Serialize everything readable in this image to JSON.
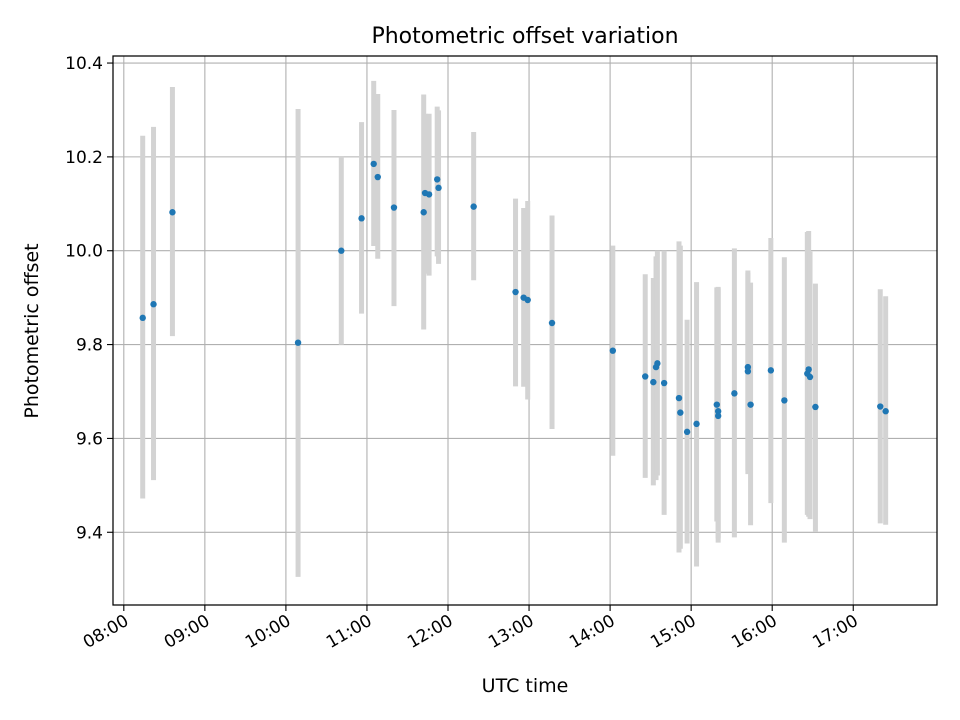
{
  "chart_data": {
    "type": "scatter",
    "title": "Photometric offset variation",
    "xlabel": "UTC time",
    "ylabel": "Photometric offset",
    "x_range": [
      "07:52",
      "18:02"
    ],
    "ylim": [
      9.245,
      10.415
    ],
    "x_ticks": [
      "08:00",
      "09:00",
      "10:00",
      "11:00",
      "12:00",
      "13:00",
      "14:00",
      "15:00",
      "16:00",
      "17:00"
    ],
    "y_ticks": [
      9.4,
      9.6,
      9.8,
      10.0,
      10.2,
      10.4
    ],
    "y_tick_labels": [
      "9.4",
      "9.6",
      "9.8",
      "10.0",
      "10.2",
      "10.4"
    ],
    "grid": true,
    "legend": "none",
    "colors": {
      "points": "#1f77b4",
      "error_bars": "#d3d3d3",
      "grid": "#b0b0b0",
      "frame": "#000000"
    },
    "series": [
      {
        "x": [
          "08:14",
          "08:22",
          "08:36",
          "10:09",
          "10:41",
          "10:56",
          "11:05",
          "11:08",
          "11:20",
          "11:42",
          "11:43",
          "11:46",
          "11:52",
          "11:53",
          "12:19",
          "12:50",
          "12:56",
          "12:59",
          "13:17",
          "14:02",
          "14:26",
          "14:32",
          "14:34",
          "14:35",
          "14:40",
          "14:51",
          "14:52",
          "14:57",
          "15:04",
          "15:19",
          "15:20",
          "15:20",
          "15:32",
          "15:42",
          "15:42",
          "15:44",
          "15:59",
          "16:09",
          "16:26",
          "16:27",
          "16:28",
          "16:32",
          "17:20",
          "17:24"
        ],
        "y": [
          9.857,
          9.886,
          10.082,
          9.804,
          10.0,
          10.069,
          10.185,
          10.157,
          10.092,
          10.082,
          10.123,
          10.12,
          10.152,
          10.134,
          10.094,
          9.912,
          9.9,
          9.895,
          9.846,
          9.787,
          9.732,
          9.72,
          9.752,
          9.76,
          9.718,
          9.686,
          9.655,
          9.614,
          9.631,
          9.672,
          9.658,
          9.648,
          9.696,
          9.752,
          9.743,
          9.672,
          9.745,
          9.681,
          9.738,
          9.747,
          9.731,
          9.667,
          9.668,
          9.658
        ],
        "yerr_low": [
          9.472,
          9.511,
          9.818,
          9.305,
          9.8,
          9.866,
          10.01,
          9.983,
          9.882,
          9.832,
          9.951,
          9.947,
          9.988,
          9.972,
          9.937,
          9.711,
          9.71,
          9.683,
          9.62,
          9.563,
          9.516,
          9.5,
          9.511,
          9.521,
          9.437,
          9.357,
          9.365,
          9.376,
          9.327,
          9.423,
          9.387,
          9.378,
          9.389,
          9.532,
          9.524,
          9.415,
          9.462,
          9.378,
          9.437,
          9.433,
          9.428,
          9.401,
          9.419,
          9.416
        ],
        "yerr_high": [
          10.245,
          10.264,
          10.349,
          10.302,
          10.2,
          10.274,
          10.362,
          10.334,
          10.3,
          10.333,
          10.292,
          10.292,
          10.307,
          10.299,
          10.253,
          10.111,
          10.091,
          10.106,
          10.075,
          10.011,
          9.95,
          9.942,
          9.988,
          10.0,
          10.0,
          10.02,
          10.011,
          9.853,
          9.933,
          9.922,
          9.923,
          9.92,
          10.005,
          9.958,
          9.953,
          9.932,
          10.027,
          9.986,
          10.04,
          10.042,
          9.998,
          9.93,
          9.918,
          9.903
        ]
      }
    ]
  }
}
